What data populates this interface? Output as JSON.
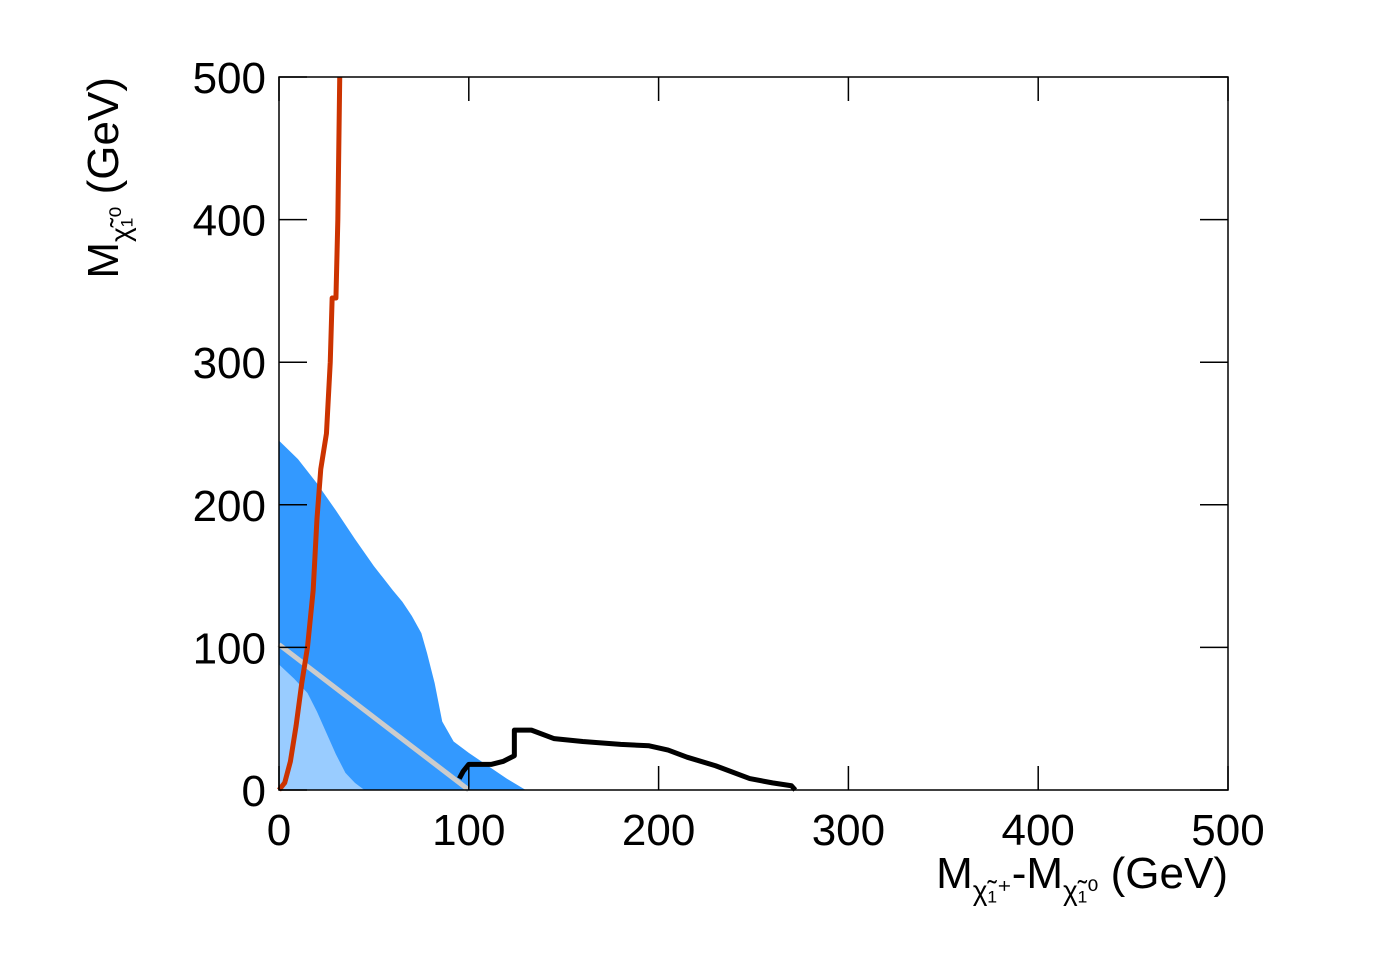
{
  "chart_data": {
    "type": "line",
    "xlabel_parts": [
      {
        "text": "M"
      },
      {
        "text": "χ̃₁⁺",
        "sub": true
      },
      {
        "text": "-M"
      },
      {
        "text": "χ̃₁⁰",
        "sub": true
      },
      {
        "text": " (GeV)"
      }
    ],
    "ylabel_parts": [
      {
        "text": "M"
      },
      {
        "text": "χ̃₁⁰",
        "sub": true
      },
      {
        "text": " (GeV)"
      }
    ],
    "xlim": [
      0,
      500
    ],
    "ylim": [
      0,
      500
    ],
    "xticks": [
      0,
      100,
      200,
      300,
      400,
      500
    ],
    "yticks": [
      0,
      100,
      200,
      300,
      400,
      500
    ],
    "series": [
      {
        "color": "#3399ff",
        "fill": true,
        "x": [
          0,
          0,
          10,
          20,
          30,
          40,
          50,
          60,
          65,
          70,
          75,
          78,
          82,
          86,
          92,
          100,
          110,
          120,
          130
        ],
        "y": [
          0,
          245,
          232,
          215,
          196,
          176,
          157,
          140,
          132,
          122,
          110,
          96,
          75,
          48,
          34,
          26,
          17,
          8,
          0
        ]
      },
      {
        "color": "#99ccff",
        "fill": true,
        "x": [
          0,
          0,
          8,
          15,
          20,
          25,
          30,
          35,
          40,
          45
        ],
        "y": [
          0,
          88,
          78,
          68,
          55,
          40,
          25,
          12,
          5,
          0
        ]
      },
      {
        "color": "#cccccc",
        "fill": false,
        "x": [
          0,
          100
        ],
        "y": [
          102,
          0
        ]
      },
      {
        "color": "#cc3300",
        "fill": false,
        "x": [
          0,
          3,
          6,
          9,
          12,
          15,
          18,
          20,
          22,
          25,
          27,
          28,
          30,
          31,
          31.5,
          32
        ],
        "y": [
          0,
          5,
          20,
          45,
          75,
          100,
          140,
          190,
          225,
          250,
          300,
          345,
          345,
          400,
          450,
          500
        ]
      },
      {
        "color": "#000000",
        "fill": false,
        "x": [
          95,
          97,
          100,
          105,
          112,
          118,
          124,
          124,
          133,
          145,
          160,
          180,
          195,
          205,
          215,
          230,
          248,
          260,
          270,
          272
        ],
        "y": [
          8,
          13,
          18,
          18,
          18,
          20,
          24,
          42,
          42,
          36,
          34,
          32,
          31,
          28,
          23,
          17,
          8,
          5,
          3,
          0
        ]
      }
    ]
  }
}
